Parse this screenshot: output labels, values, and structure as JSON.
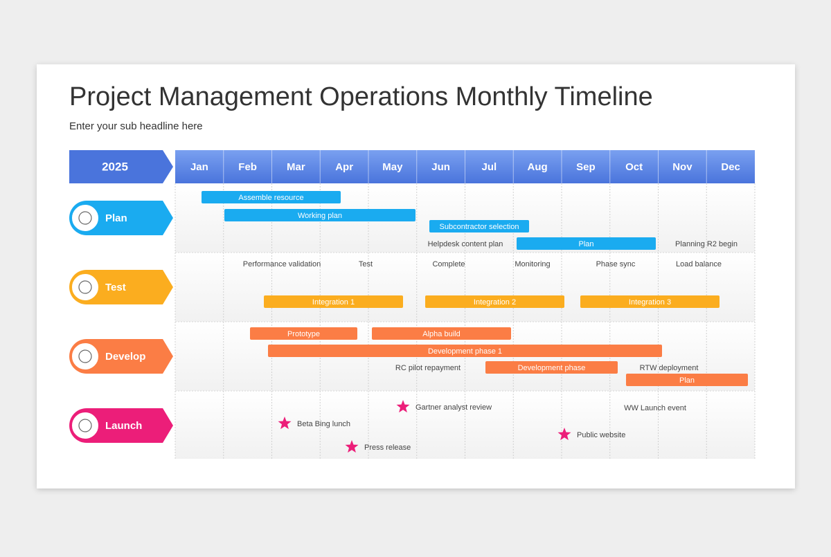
{
  "title": "Project Management Operations Monthly Timeline",
  "subtitle": "Enter your sub headline here",
  "year": "2025",
  "header_color": "#4a74dc",
  "months": [
    "Jan",
    "Feb",
    "Mar",
    "Apr",
    "May",
    "Jun",
    "Jul",
    "Aug",
    "Sep",
    "Oct",
    "Nov",
    "Dec"
  ],
  "rows": [
    {
      "label": "Plan",
      "color": "#1aabf0",
      "bars": [
        "Assemble resource",
        "Working plan",
        "Subcontractor selection",
        "Plan"
      ],
      "notes": [
        "Helpdesk content plan",
        "Planning R2 begin"
      ],
      "milestones": []
    },
    {
      "label": "Test",
      "color": "#fbad1f",
      "bars": [
        "Integration 1",
        "Integration 2",
        "Integration 3"
      ],
      "notes": [
        "Performance validation",
        "Test",
        "Complete",
        "Monitoring",
        "Phase sync",
        "Load balance"
      ],
      "milestones": []
    },
    {
      "label": "Develop",
      "color": "#fb7d45",
      "bars": [
        "Prototype",
        "Alpha build",
        "Development phase 1",
        "Development phase",
        "Plan"
      ],
      "notes": [
        "RC pilot repayment",
        "RTW deployment"
      ],
      "milestones": []
    },
    {
      "label": "Launch",
      "color": "#ec1e79",
      "bars": [],
      "notes": [
        "WW Launch event"
      ],
      "milestones": [
        "Gartner analyst review",
        "Beta Bing lunch",
        "Press release",
        "Public website"
      ]
    }
  ]
}
